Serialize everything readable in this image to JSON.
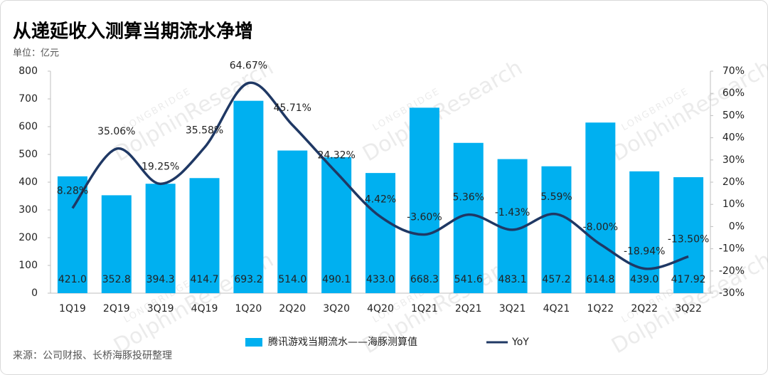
{
  "chart_data": {
    "type": "bar",
    "title": "从递延收入测算当期流水净增",
    "unit_note": "单位：亿元",
    "source": "来源：公司财报、长桥海豚投研整理",
    "watermark": {
      "top": "LONGBRIDGE",
      "main": "DolphinResearch"
    },
    "categories": [
      "1Q19",
      "2Q19",
      "3Q19",
      "4Q19",
      "1Q20",
      "2Q20",
      "3Q20",
      "4Q20",
      "1Q21",
      "2Q21",
      "3Q21",
      "4Q21",
      "1Q22",
      "2Q22",
      "3Q22"
    ],
    "series": [
      {
        "name": "腾讯游戏当期流水——海豚测算值",
        "type": "bar",
        "color": "#00b0f0",
        "values": [
          421.0,
          352.8,
          394.3,
          414.7,
          693.2,
          514.0,
          490.1,
          433.0,
          668.3,
          541.6,
          483.1,
          457.2,
          614.8,
          439.0,
          417.92
        ],
        "value_labels": [
          "421.0",
          "352.8",
          "394.3",
          "414.7",
          "693.2",
          "514.0",
          "490.1",
          "433.0",
          "668.3",
          "541.6",
          "483.1",
          "457.2",
          "614.8",
          "439.0",
          "417.92"
        ]
      },
      {
        "name": "YoY",
        "type": "line",
        "axis": "y2",
        "color": "#1f3864",
        "values": [
          8.28,
          35.06,
          19.25,
          35.58,
          64.67,
          45.71,
          24.32,
          4.42,
          -3.6,
          5.36,
          -1.43,
          5.59,
          -8.0,
          -18.94,
          -13.5
        ],
        "value_labels": [
          "8.28%",
          "35.06%",
          "19.25%",
          "35.58%",
          "64.67%",
          "45.71%",
          "24.32%",
          "4.42%",
          "-3.60%",
          "5.36%",
          "-1.43%",
          "5.59%",
          "-8.00%",
          "-18.94%",
          "-13.50%"
        ]
      }
    ],
    "ylim": [
      0,
      800
    ],
    "yticks": [
      0,
      100,
      200,
      300,
      400,
      500,
      600,
      700,
      800
    ],
    "y2lim": [
      -30,
      70
    ],
    "y2ticks": [
      {
        "value": -30,
        "label": "-30%"
      },
      {
        "value": -20,
        "label": "-20%"
      },
      {
        "value": -10,
        "label": "-10%"
      },
      {
        "value": 0,
        "label": "0%"
      },
      {
        "value": 10,
        "label": "10%"
      },
      {
        "value": 20,
        "label": "20%"
      },
      {
        "value": 30,
        "label": "30%"
      },
      {
        "value": 40,
        "label": "40%"
      },
      {
        "value": 50,
        "label": "50%"
      },
      {
        "value": 60,
        "label": "60%"
      },
      {
        "value": 70,
        "label": "70%"
      }
    ],
    "grid": false,
    "legend": "bottom"
  }
}
